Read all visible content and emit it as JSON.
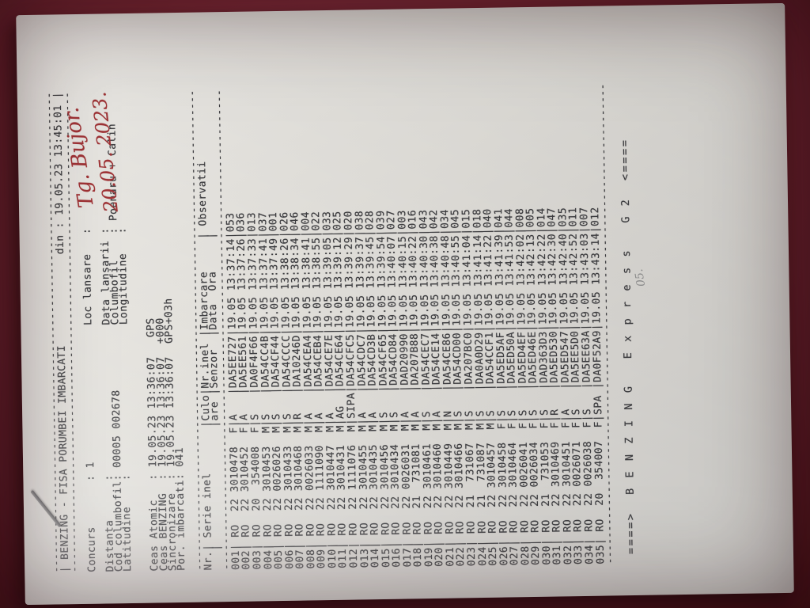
{
  "colors": {
    "background": "#7c2936",
    "paper": "#e3e1dc",
    "ink": "#3d3d40",
    "red_ink": "#a23437",
    "pencil": "#909090"
  },
  "doc": {
    "border_len": 74,
    "title": {
      "left": "| BENZING - FISA PORUMBEI IMBARCATI",
      "right": "din : 19.05.23 13:45:01 |"
    },
    "info_left": [
      "Concurs       : 1",
      "",
      "Distanta      :",
      "Cod columbofil: 00005 002678",
      "Latitudine    :"
    ],
    "info_right": [
      "Loc lansare   :",
      "",
      "Data lansarii :",
      "Columbofil    : Poenaru + Calin",
      "Longitudine   :"
    ],
    "ceas_lines": [
      "Ceas Atomic   : 19.05.23 13:36:07   GPS",
      "Ceas BENZING  : 19.05.23 13:36:07  +000",
      "Sincronizare  : 19.05.23 13:36:07  GPS+03h",
      "Por. imbarcati: 041"
    ],
    "table": {
      "header1": "Nr.| Serie inel       |Culo|Nr.inel |Imbarcare     | Observatii",
      "header2": "   |                  |are |Senzor  |Data  Ora     |",
      "date": "19.05",
      "country": "RO",
      "rows": [
        [
          "001",
          "22",
          "3010478",
          "F",
          "A",
          "DA5EE727",
          "13:37:14",
          "053"
        ],
        [
          "002",
          "22",
          "3010452",
          "F",
          "A",
          "DA5EE561",
          "13:37:26",
          "036"
        ],
        [
          "003",
          "20",
          "354008",
          "F",
          "S",
          "DA0F4F66",
          "13:37:33",
          "013"
        ],
        [
          "004",
          "22",
          "3010453",
          "M",
          "S",
          "DA54CC4B",
          "13:37:41",
          "037"
        ],
        [
          "005",
          "22",
          "0026026",
          "M",
          "S",
          "DA54CF44",
          "13:37:49",
          "001"
        ],
        [
          "006",
          "22",
          "3010433",
          "M",
          "S",
          "DA54CCCC",
          "13:38:26",
          "026"
        ],
        [
          "007",
          "22",
          "3010468",
          "M",
          "R",
          "DA10246D",
          "13:38:34",
          "046"
        ],
        [
          "008",
          "22",
          "0026033",
          "M",
          "A",
          "DA54CEA4",
          "13:38:41",
          "004"
        ],
        [
          "009",
          "22",
          "1111090",
          "M",
          "A",
          "DA54CEB4",
          "13:38:55",
          "022"
        ],
        [
          "010",
          "22",
          "3010447",
          "M",
          "A",
          "DA54CE7E",
          "13:39:05",
          "033"
        ],
        [
          "011",
          "22",
          "3010431",
          "M",
          "AG",
          "DA54CE64",
          "13:39:12",
          "025"
        ],
        [
          "012",
          "22",
          "1111076",
          "M",
          "SIPA",
          "DA54CFC5",
          "13:39:29",
          "020"
        ],
        [
          "013",
          "22",
          "3010455",
          "M",
          "A",
          "DA54CDC7",
          "13:39:37",
          "038"
        ],
        [
          "014",
          "22",
          "3010435",
          "M",
          "A",
          "DA54CD3B",
          "13:39:45",
          "028"
        ],
        [
          "015",
          "22",
          "3010456",
          "M",
          "S",
          "DA54CF65",
          "13:39:54",
          "039"
        ],
        [
          "016",
          "22",
          "3010434",
          "M",
          "S",
          "DA54CD84",
          "13:40:07",
          "027"
        ],
        [
          "017",
          "22",
          "0026031",
          "M",
          "A",
          "DAD20990",
          "13:40:15",
          "003"
        ],
        [
          "018",
          "21",
          "731081",
          "M",
          "A",
          "DA207B88",
          "13:40:22",
          "016"
        ],
        [
          "019",
          "22",
          "3010461",
          "M",
          "S",
          "DA54CEC7",
          "13:40:30",
          "043"
        ],
        [
          "020",
          "22",
          "3010460",
          "M",
          "A",
          "DA54CE14",
          "13:40:38",
          "042"
        ],
        [
          "021",
          "22",
          "3010449",
          "M",
          "N",
          "DA54CE86",
          "13:40:48",
          "034"
        ],
        [
          "022",
          "22",
          "3010466",
          "M",
          "S",
          "DA54CD00",
          "13:40:55",
          "045"
        ],
        [
          "023",
          "21",
          "731067",
          "M",
          "S",
          "DA207BC0",
          "13:41:04",
          "015"
        ],
        [
          "024",
          "21",
          "731087",
          "M",
          "S",
          "DA0A0D29",
          "13:41:14",
          "018"
        ],
        [
          "025",
          "22",
          "3010457",
          "M",
          "S",
          "DA54CCF1",
          "13:41:22",
          "040"
        ],
        [
          "026",
          "22",
          "3010458",
          "F",
          "S",
          "DA5ED5AF",
          "13:41:39",
          "041"
        ],
        [
          "027",
          "22",
          "3010464",
          "F",
          "S",
          "DA5ED50A",
          "13:41:53",
          "044"
        ],
        [
          "028",
          "22",
          "0026041",
          "F",
          "S",
          "DA5ED4EF",
          "13:42:02",
          "008"
        ],
        [
          "029",
          "22",
          "0026034",
          "F",
          "S",
          "DA5ED46E",
          "13:42:13",
          "005"
        ],
        [
          "030",
          "21",
          "731053",
          "F",
          "S",
          "DAD363D3",
          "13:42:22",
          "014"
        ],
        [
          "031",
          "22",
          "3010469",
          "F",
          "R",
          "DA5ED530",
          "13:42:30",
          "047"
        ],
        [
          "032",
          "22",
          "3010451",
          "F",
          "A",
          "DA5ED547",
          "13:42:40",
          "035"
        ],
        [
          "033",
          "22",
          "0026071",
          "F",
          "S",
          "DA5EE5D0",
          "13:42:52",
          "011"
        ],
        [
          "034",
          "22",
          "0026038",
          "F",
          "S",
          "DA5EE63A",
          "13:43:03",
          "007"
        ],
        [
          "035",
          "20",
          "354007",
          "F",
          "SPA",
          "DA0F52A9",
          "13:43:14",
          "012"
        ]
      ]
    },
    "footer": "====>  B E N Z I N G   E x p r e s s   G 2  <====",
    "handwriting": {
      "loc_value": "Tg. Bujor.",
      "data_value": "20.05. 2023."
    },
    "scribble": "05."
  }
}
